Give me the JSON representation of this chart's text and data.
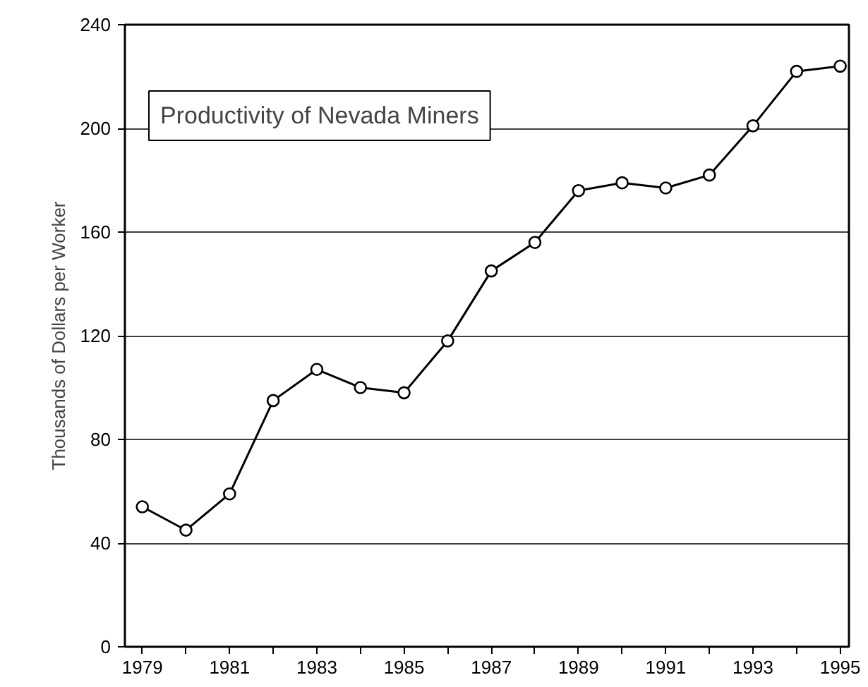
{
  "chart_data": {
    "type": "line",
    "title": "Productivity of Nevada Miners",
    "ylabel": "Thousands of Dollars per Worker",
    "x": [
      1979,
      1980,
      1981,
      1982,
      1983,
      1984,
      1985,
      1986,
      1987,
      1988,
      1989,
      1990,
      1991,
      1992,
      1993,
      1994,
      1995
    ],
    "series": [
      {
        "color": "#000000",
        "values": [
          54,
          45,
          59,
          95,
          107,
          100,
          98,
          118,
          145,
          156,
          176,
          179,
          177,
          182,
          201,
          222,
          224
        ]
      }
    ],
    "xlim": [
      1978.6,
      1995.2
    ],
    "ylim": [
      0,
      240
    ],
    "xticks": [
      1979,
      {
        "value": 1980,
        "label": null
      },
      1981,
      {
        "value": 1982,
        "label": null
      },
      1983,
      {
        "value": 1984,
        "label": null
      },
      1985,
      {
        "value": 1986,
        "label": null
      },
      1987,
      {
        "value": 1988,
        "label": null
      },
      1989,
      {
        "value": 1990,
        "label": null
      },
      1991,
      {
        "value": 1992,
        "label": null
      },
      1993,
      {
        "value": 1994,
        "label": null
      },
      1995
    ],
    "yticks": [
      0,
      40,
      80,
      120,
      160,
      200,
      240
    ],
    "grid": "y",
    "marker": "circle",
    "line_style": "solid"
  }
}
